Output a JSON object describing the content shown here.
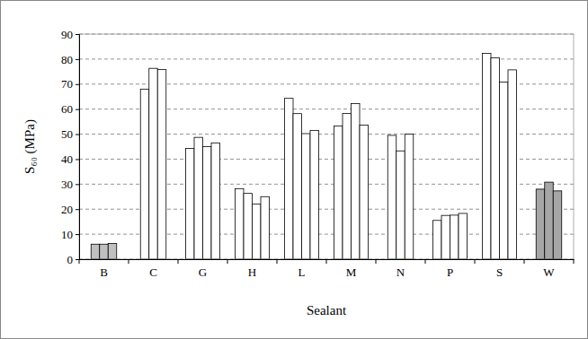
{
  "chart_data": {
    "type": "bar",
    "y_label": "S₆₀ (MPa)",
    "x_label": "Sealant",
    "categories": [
      "B",
      "C",
      "G",
      "H",
      "L",
      "M",
      "N",
      "P",
      "S",
      "W"
    ],
    "values": [
      [
        6.0,
        6.0,
        6.3
      ],
      [
        68,
        76.3,
        75.8
      ],
      [
        44.3,
        48.7,
        45,
        46.5
      ],
      [
        28.2,
        26.3,
        22,
        25
      ],
      [
        64.3,
        58.2,
        50.2,
        51.5
      ],
      [
        53.3,
        58.3,
        62.2,
        53.6
      ],
      [
        49.5,
        43.3,
        50
      ],
      [
        15.5,
        17.5,
        17.6,
        18.3
      ],
      [
        82.3,
        80.5,
        70.8,
        75.7
      ],
      [
        28,
        30.8,
        27.3
      ]
    ],
    "colors": [
      "#c0c0c0",
      "#ffffff",
      "#ffffff",
      "#ffffff",
      "#ffffff",
      "#ffffff",
      "#ffffff",
      "#ffffff",
      "#ffffff",
      "#a6a6a6"
    ],
    "ylim": [
      0,
      90
    ],
    "yticks": [
      0,
      10,
      20,
      30,
      40,
      50,
      60,
      70,
      80,
      90
    ],
    "grid": true
  }
}
